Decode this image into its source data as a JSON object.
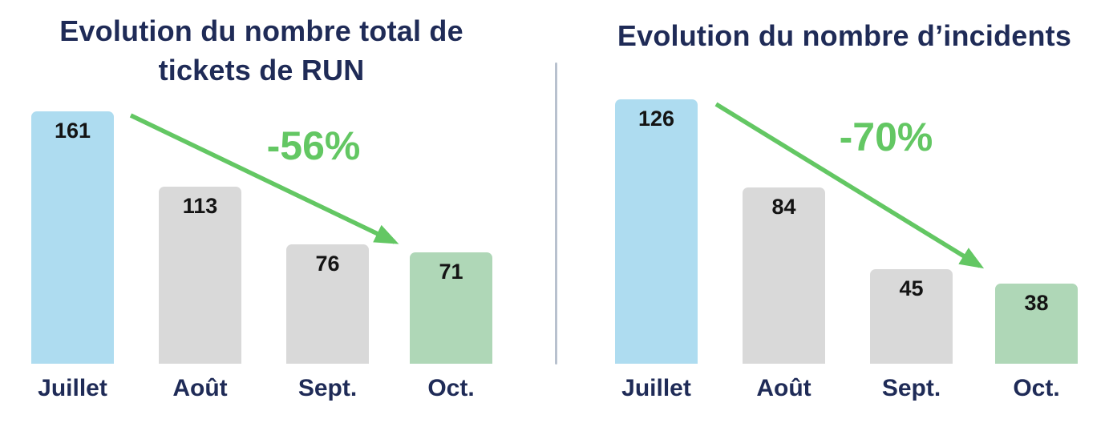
{
  "style": {
    "background": "#ffffff",
    "title_color": "#1f2b57",
    "category_label_color": "#1f2b57",
    "value_label_color": "#141414",
    "trend_green": "#63c763",
    "divider_color": "#b8c1ce",
    "bar_blue": "#aedcf0",
    "bar_gray": "#d9d9d9",
    "bar_green": "#afd7b7"
  },
  "chart_data": [
    {
      "type": "bar",
      "title": "Evolution du nombre total de tickets de RUN",
      "title_lines": [
        "Evolution du nombre total de",
        "tickets de RUN"
      ],
      "categories": [
        "Juillet",
        "Août",
        "Sept.",
        "Oct."
      ],
      "values": [
        161,
        113,
        76,
        71
      ],
      "bar_colors": [
        "#aedcf0",
        "#d9d9d9",
        "#d9d9d9",
        "#afd7b7"
      ],
      "annotation": "-56%",
      "xlabel": "",
      "ylabel": "",
      "ylim": [
        0,
        161
      ],
      "grid": false,
      "legend": false
    },
    {
      "type": "bar",
      "title": "Evolution du nombre d’incidents",
      "title_lines": [
        "Evolution du nombre d’incidents"
      ],
      "categories": [
        "Juillet",
        "Août",
        "Sept.",
        "Oct."
      ],
      "values": [
        126,
        84,
        45,
        38
      ],
      "bar_colors": [
        "#aedcf0",
        "#d9d9d9",
        "#d9d9d9",
        "#afd7b7"
      ],
      "annotation": "-70%",
      "xlabel": "",
      "ylabel": "",
      "ylim": [
        0,
        126
      ],
      "grid": false,
      "legend": false
    }
  ]
}
